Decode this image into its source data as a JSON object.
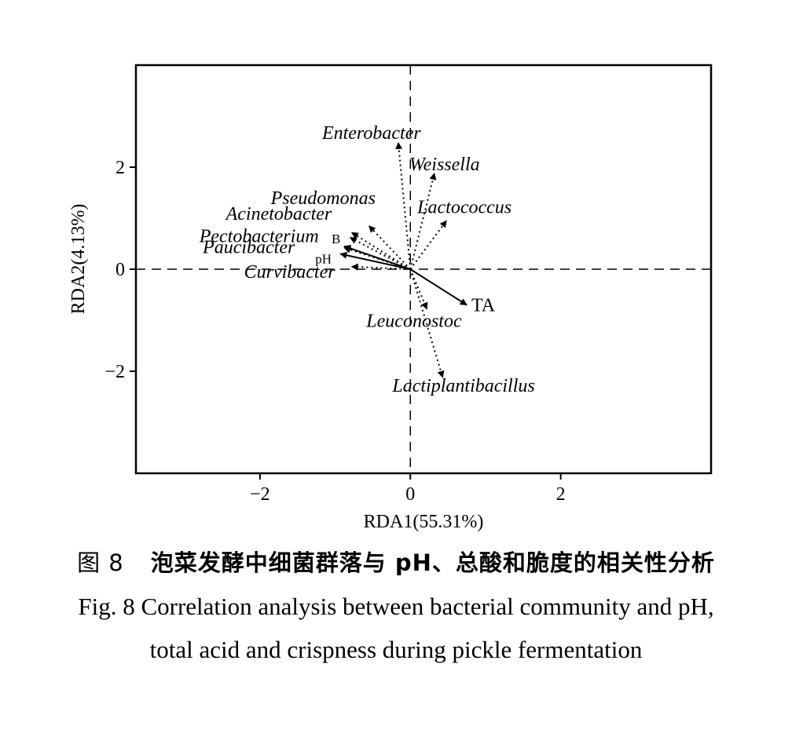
{
  "chart_data": {
    "type": "biplot",
    "xlabel": "RDA1(55.31%)",
    "ylabel": "RDA2(4.13%)",
    "xlim": [
      -3.65,
      4.0
    ],
    "ylim": [
      -4.0,
      4.0
    ],
    "xticks": [
      -2,
      0,
      2
    ],
    "yticks": [
      -2,
      0,
      2
    ],
    "xtick_labels": [
      "−2",
      "0",
      "2"
    ],
    "ytick_labels": [
      "−2",
      "0",
      "2"
    ],
    "reference_lines": "dashed lines at x=0 and y=0",
    "species": [
      {
        "name": "Enterobacter",
        "x": -0.16,
        "y": 2.48
      },
      {
        "name": "Weissella",
        "x": 0.32,
        "y": 1.88
      },
      {
        "name": "Pseudomonas",
        "x": -0.55,
        "y": 0.85
      },
      {
        "name": "Lactococcus",
        "x": 0.48,
        "y": 0.95
      },
      {
        "name": "Acinetobacter",
        "x": -0.78,
        "y": 0.72
      },
      {
        "name": "Pectobacterium",
        "x": -0.8,
        "y": 0.62
      },
      {
        "name": "Paucibacter",
        "x": -0.88,
        "y": 0.42
      },
      {
        "name": "Curvibacter",
        "x": -0.78,
        "y": 0.05
      },
      {
        "name": "Leuconostoc",
        "x": 0.22,
        "y": -0.78
      },
      {
        "name": "Lactiplantibacillus",
        "x": 0.43,
        "y": -2.12
      }
    ],
    "environment": [
      {
        "name": "TA",
        "x": 0.75,
        "y": -0.7
      },
      {
        "name": "B",
        "x": -0.88,
        "y": 0.45
      },
      {
        "name": "pH",
        "x": -0.93,
        "y": 0.3
      }
    ]
  },
  "caption": {
    "cn_fig": "图 8",
    "cn_title": "泡菜发酵中细菌群落与 pH、总酸和脆度的相关性分析",
    "en_line1": "Fig. 8 Correlation analysis between bacterial community and pH,",
    "en_line2": "total acid and crispness during pickle fermentation"
  }
}
